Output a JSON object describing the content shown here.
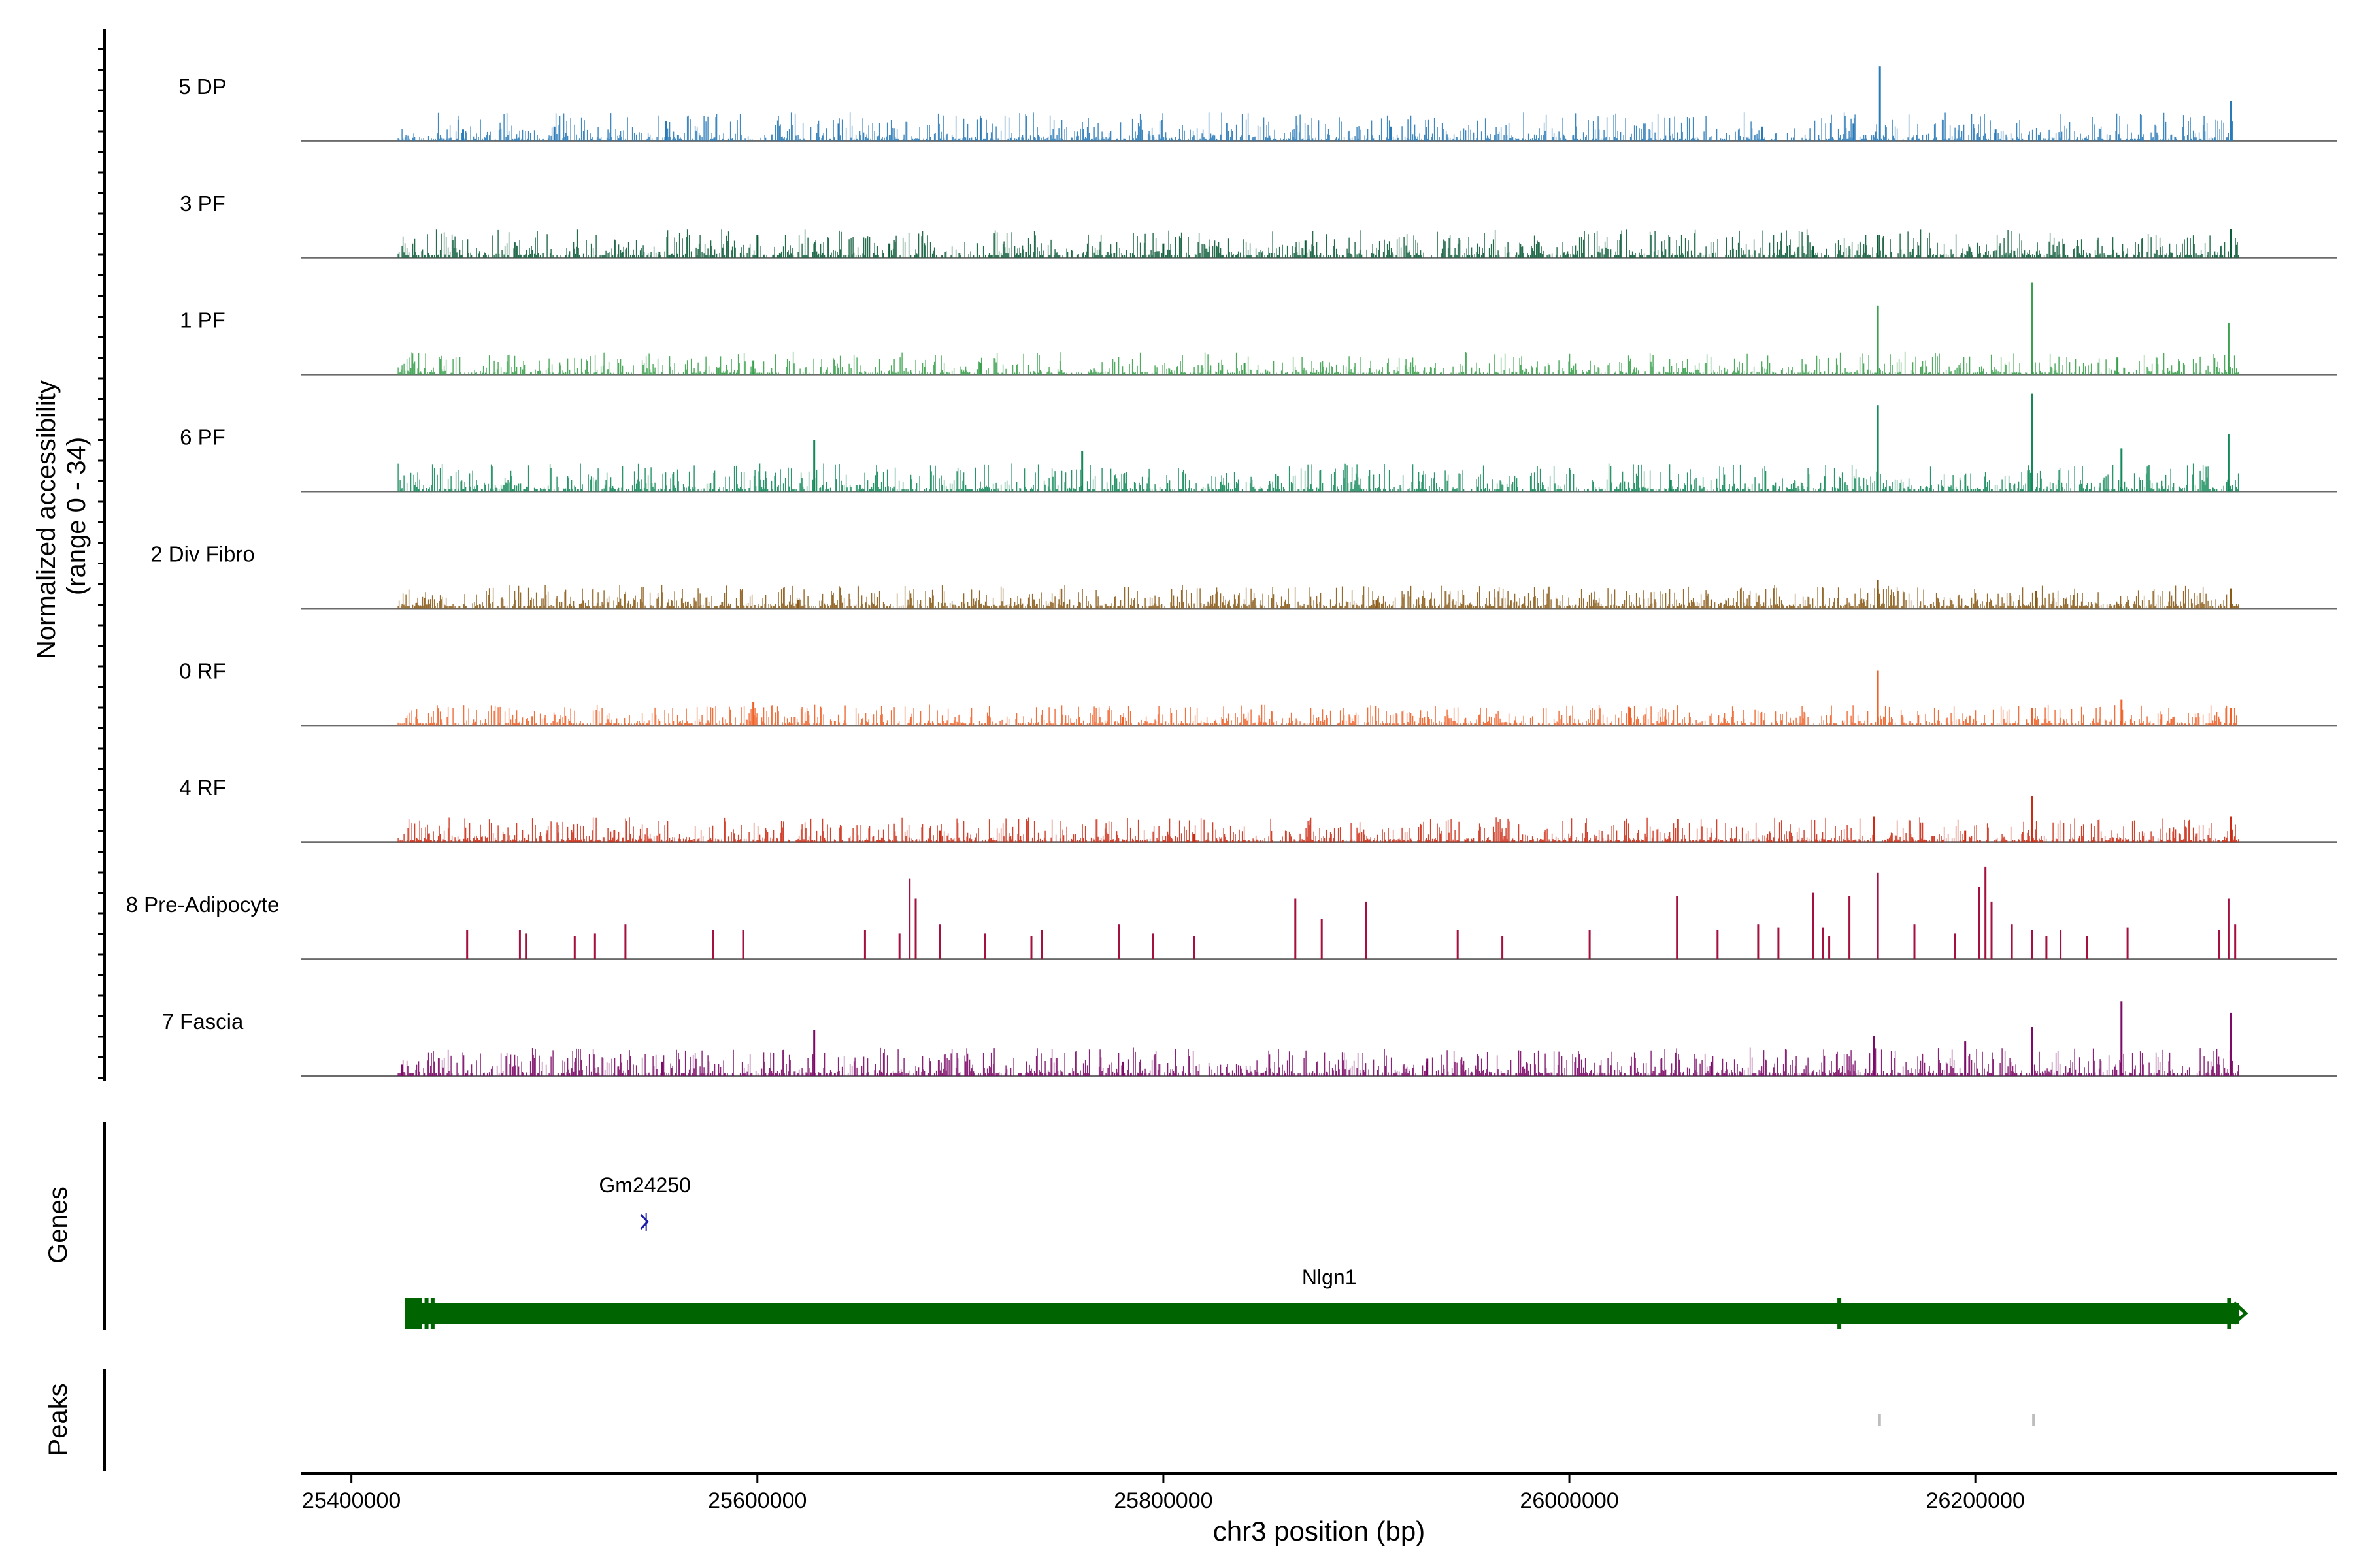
{
  "chart_data": {
    "type": "coverage",
    "chromosome": "chr3",
    "ylabel_line1": "Normalized accessibility",
    "ylabel_line2": "(range 0 - 34)",
    "y_range": [
      0,
      34
    ],
    "xlabel": "chr3 position (bp)",
    "xlim": [
      25375000,
      26378000
    ],
    "data_start": 25423000,
    "data_end": 26330000,
    "x_ticks": [
      "25400000",
      "25600000",
      "25800000",
      "26000000",
      "26200000"
    ],
    "x_tick_values": [
      25400000,
      25600000,
      25800000,
      26000000,
      26200000
    ],
    "tracks": [
      {
        "name": "5 DP",
        "color": "#2a7ab8",
        "base": 0.9,
        "noise": 3.0,
        "density": 0.55,
        "seed": 11,
        "peaks": [
          [
            25455000,
            4
          ],
          [
            25500000,
            5
          ],
          [
            25555000,
            7
          ],
          [
            25640000,
            6
          ],
          [
            25710000,
            8
          ],
          [
            25912000,
            5
          ],
          [
            26095000,
            5
          ],
          [
            26140000,
            6
          ],
          [
            26153000,
            26
          ],
          [
            26210000,
            4
          ],
          [
            26326000,
            14
          ]
        ]
      },
      {
        "name": "3 PF",
        "color": "#0d5c3a",
        "base": 0.9,
        "noise": 3.0,
        "density": 0.6,
        "seed": 23,
        "peaks": [
          [
            25600000,
            8
          ],
          [
            25665000,
            5
          ],
          [
            25800000,
            5
          ],
          [
            25870000,
            6
          ],
          [
            26120000,
            4
          ],
          [
            26152000,
            8
          ],
          [
            26326000,
            10
          ]
        ]
      },
      {
        "name": "1 PF",
        "color": "#3aa14e",
        "base": 0.7,
        "noise": 2.4,
        "density": 0.5,
        "seed": 37,
        "peaks": [
          [
            25598000,
            5
          ],
          [
            25710000,
            4
          ],
          [
            25840000,
            4
          ],
          [
            26152000,
            24
          ],
          [
            26228000,
            32
          ],
          [
            26270000,
            6
          ],
          [
            26325000,
            18
          ]
        ]
      },
      {
        "name": "6 PF",
        "color": "#138a5a",
        "base": 0.8,
        "noise": 3.0,
        "density": 0.6,
        "seed": 41,
        "peaks": [
          [
            25628000,
            18
          ],
          [
            25760000,
            14
          ],
          [
            26050000,
            4
          ],
          [
            26152000,
            30
          ],
          [
            26228000,
            34
          ],
          [
            26272000,
            15
          ],
          [
            26325000,
            20
          ]
        ]
      },
      {
        "name": "2 Div Fibro",
        "color": "#8a5a16",
        "base": 0.9,
        "noise": 2.4,
        "density": 0.65,
        "seed": 53,
        "peaks": [
          [
            25620000,
            3
          ],
          [
            25905000,
            3
          ],
          [
            26070000,
            3
          ],
          [
            26152000,
            10
          ],
          [
            26230000,
            6
          ],
          [
            26326000,
            7
          ]
        ]
      },
      {
        "name": "0 RF",
        "color": "#f06027",
        "base": 0.7,
        "noise": 2.2,
        "density": 0.55,
        "seed": 67,
        "peaks": [
          [
            25598000,
            8
          ],
          [
            25780000,
            3
          ],
          [
            26030000,
            6
          ],
          [
            26152000,
            19
          ],
          [
            26228000,
            6
          ],
          [
            26272000,
            9
          ],
          [
            26326000,
            6
          ]
        ]
      },
      {
        "name": "4 RF",
        "color": "#cc2c15",
        "base": 0.8,
        "noise": 2.6,
        "density": 0.6,
        "seed": 79,
        "peaks": [
          [
            25690000,
            4
          ],
          [
            25815000,
            3
          ],
          [
            26150000,
            9
          ],
          [
            26195000,
            4
          ],
          [
            26228000,
            16
          ],
          [
            26326000,
            9
          ]
        ]
      },
      {
        "name": "8 Pre-Adipocyte",
        "color": "#a5103e",
        "base": 0,
        "noise": 0,
        "density": 0,
        "seed": 83,
        "peaks": [
          [
            25457000,
            10
          ],
          [
            25483000,
            10
          ],
          [
            25486000,
            9
          ],
          [
            25510000,
            8
          ],
          [
            25520000,
            9
          ],
          [
            25535000,
            12
          ],
          [
            25578000,
            10
          ],
          [
            25593000,
            10
          ],
          [
            25653000,
            10
          ],
          [
            25670000,
            9
          ],
          [
            25675000,
            28
          ],
          [
            25678000,
            21
          ],
          [
            25690000,
            12
          ],
          [
            25712000,
            9
          ],
          [
            25735000,
            8
          ],
          [
            25740000,
            10
          ],
          [
            25778000,
            12
          ],
          [
            25795000,
            9
          ],
          [
            25815000,
            8
          ],
          [
            25865000,
            21
          ],
          [
            25878000,
            14
          ],
          [
            25900000,
            20
          ],
          [
            25945000,
            10
          ],
          [
            25967000,
            8
          ],
          [
            26010000,
            10
          ],
          [
            26053000,
            22
          ],
          [
            26073000,
            10
          ],
          [
            26093000,
            12
          ],
          [
            26103000,
            11
          ],
          [
            26120000,
            23
          ],
          [
            26125000,
            11
          ],
          [
            26128000,
            8
          ],
          [
            26138000,
            22
          ],
          [
            26152000,
            30
          ],
          [
            26170000,
            12
          ],
          [
            26190000,
            9
          ],
          [
            26202000,
            25
          ],
          [
            26205000,
            32
          ],
          [
            26208000,
            20
          ],
          [
            26218000,
            12
          ],
          [
            26228000,
            10
          ],
          [
            26235000,
            8
          ],
          [
            26242000,
            10
          ],
          [
            26255000,
            8
          ],
          [
            26275000,
            11
          ],
          [
            26320000,
            10
          ],
          [
            26325000,
            21
          ],
          [
            26328000,
            12
          ]
        ]
      },
      {
        "name": "7 Fascia",
        "color": "#7c0a68",
        "base": 0.9,
        "noise": 3.0,
        "density": 0.6,
        "seed": 97,
        "peaks": [
          [
            25425000,
            4
          ],
          [
            25553000,
            5
          ],
          [
            25628000,
            16
          ],
          [
            25780000,
            5
          ],
          [
            25930000,
            6
          ],
          [
            26070000,
            5
          ],
          [
            26150000,
            14
          ],
          [
            26195000,
            12
          ],
          [
            26228000,
            17
          ],
          [
            26272000,
            26
          ],
          [
            26326000,
            22
          ]
        ]
      }
    ],
    "genes_label": "Genes",
    "genes": [
      {
        "name": "Gm24250",
        "start": 25542000,
        "end": 25548000,
        "color": "#1a1aa8",
        "row": 0
      },
      {
        "name": "Nlgn1",
        "start": 25427000,
        "end": 26330000,
        "color": "#006400",
        "row": 1,
        "marks": [
          25428000,
          25432000,
          25437000,
          25440000,
          26133000,
          26325000
        ]
      }
    ],
    "peaks_label": "Peaks",
    "peak_regions": [
      [
        26152000,
        26153500
      ],
      [
        26228000,
        26229500
      ]
    ],
    "peak_color": "#bdbdbd"
  }
}
